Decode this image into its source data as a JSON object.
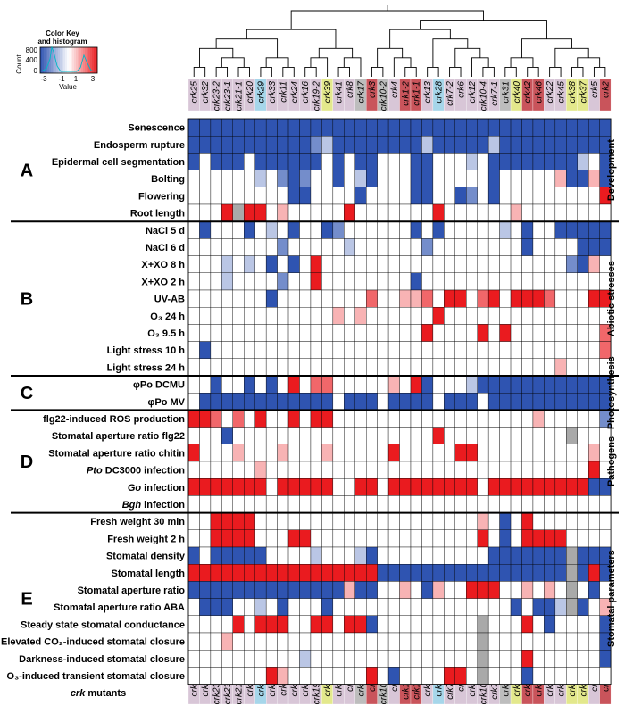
{
  "chart_data": {
    "type": "heatmap",
    "title": "",
    "key": {
      "title_line1": "Color Key",
      "title_line2": "and histogram",
      "ylabel": "Count",
      "yticks": [
        "0",
        "400",
        "800"
      ],
      "xticks": [
        "-3",
        "-1",
        "1",
        "3"
      ],
      "xlabel": "Value",
      "range": [
        -3,
        3
      ]
    },
    "columns": [
      "crk25",
      "crk32",
      "crk23-2",
      "crk23-1",
      "crk21-1",
      "crk20",
      "crk29",
      "crk33",
      "crk11",
      "crk24",
      "crk16",
      "crk19-2",
      "crk39",
      "crk41",
      "crk8",
      "crk17",
      "crk3",
      "crk10-2",
      "crk4",
      "crk1-2",
      "crk1-1",
      "crk13",
      "crk28",
      "crk7-2",
      "crk6",
      "crk12",
      "crk10-4",
      "crk7-1",
      "crk31",
      "crk40",
      "crk42",
      "crk46",
      "crk22",
      "crk45",
      "crk38",
      "crk37",
      "crk5",
      "crk2"
    ],
    "column_colors": [
      "#d8c6d7",
      "#d8c6d7",
      "#d8c6d7",
      "#d8c6d7",
      "#d8c6d7",
      "#d8c6d7",
      "#a6d6ea",
      "#d8c6d7",
      "#d8c6d7",
      "#d8c6d7",
      "#d8c6d7",
      "#d8c6d7",
      "#e3e88c",
      "#d8c6d7",
      "#d8c6d7",
      "#bdbdbd",
      "#c9545b",
      "#bdbdbd",
      "#d8c6d7",
      "#c9545b",
      "#c9545b",
      "#d8c6d7",
      "#a6d6ea",
      "#d8c6d7",
      "#d8c6d7",
      "#d8c6d7",
      "#d8c6d7",
      "#d8c6d7",
      "#bdbdbd",
      "#e3e88c",
      "#c9545b",
      "#c9545b",
      "#d8c6d7",
      "#d8c6d7",
      "#e3e88c",
      "#e3e88c",
      "#d8c6d7",
      "#c9545b"
    ],
    "bottom_axis_label": "crk mutants",
    "rows": [
      "Senescence",
      "Endosperm rupture",
      "Epidermal cell segmentation",
      "Bolting",
      "Flowering",
      "Root length",
      "NaCl 5 d",
      "NaCl 6 d",
      "X+XO 8 h",
      "X+XO 2 h",
      "UV-AB",
      "O₃ 24 h",
      "O₃ 9.5 h",
      "Light stress 10 h",
      "Light stress 24 h",
      "φPo DCMU",
      "φPo MV",
      "flg22-induced ROS production",
      "Stomatal aperture ratio flg22",
      "Stomatal aperture ratio chitin",
      "Pto DC3000 infection",
      "Go infection",
      "Bgh infection",
      "Fresh weight 30 min",
      "Fresh weight 2 h",
      "Stomatal density",
      "Stomatal length",
      "Stomatal aperture ratio",
      "Stomatal aperture ratio ABA",
      "Steady state stomatal conductance",
      "Elevated CO₂-induced stomatal closure",
      "Darkness-induced stomatal closure",
      "O₃-induced transient stomatal closure"
    ],
    "italic_rows": [
      20,
      21,
      22
    ],
    "groups": [
      {
        "letter": "A",
        "category": "Development",
        "start": 0,
        "end": 5
      },
      {
        "letter": "B",
        "category": "Abiotic stresses",
        "start": 6,
        "end": 14
      },
      {
        "letter": "C",
        "category": "Photosynthesis",
        "start": 15,
        "end": 16
      },
      {
        "letter": "D",
        "category": "Pathogens",
        "start": 17,
        "end": 22
      },
      {
        "letter": "E",
        "category": "Stomatal parameters",
        "start": 23,
        "end": 32
      }
    ],
    "values_note": "row-major; -3..3 scale, 0 = white, null = grey (missing)",
    "values": [
      [
        -3,
        -3,
        -3,
        -3,
        -3,
        -3,
        -3,
        -3,
        -3,
        -3,
        -3,
        -3,
        -3,
        -3,
        -3,
        -3,
        -3,
        -3,
        -3,
        -3,
        -3,
        -3,
        -3,
        -3,
        -3,
        -3,
        -3,
        -3,
        -3,
        -3,
        -3,
        -3,
        -3,
        -3,
        -3,
        -3,
        -3,
        -3
      ],
      [
        -3,
        -3,
        -3,
        -3,
        -3,
        -3,
        -3,
        -3,
        -3,
        -3,
        -3,
        -2,
        -1,
        -3,
        -3,
        -3,
        -3,
        -3,
        -3,
        -3,
        -3,
        -1,
        -3,
        -3,
        -3,
        -3,
        -3,
        -1,
        -3,
        -3,
        -3,
        -3,
        -3,
        -3,
        -3,
        -3,
        -3,
        -3
      ],
      [
        -3,
        0,
        -3,
        -3,
        -3,
        0,
        -3,
        -3,
        -3,
        -3,
        -3,
        -3,
        0,
        -3,
        0,
        -3,
        -3,
        0,
        0,
        0,
        -3,
        -3,
        0,
        0,
        0,
        -1,
        0,
        -3,
        -3,
        -3,
        -3,
        -3,
        -3,
        -3,
        -3,
        -1,
        0,
        -3
      ],
      [
        0,
        0,
        0,
        0,
        0,
        0,
        -1,
        0,
        -2,
        -3,
        -2,
        0,
        0,
        -3,
        0,
        -1,
        -3,
        0,
        0,
        0,
        -3,
        -3,
        0,
        0,
        0,
        0,
        0,
        -3,
        0,
        0,
        0,
        0,
        0,
        1,
        -3,
        -3,
        1,
        -3
      ],
      [
        0,
        0,
        0,
        0,
        0,
        0,
        0,
        0,
        0,
        -3,
        -3,
        0,
        0,
        0,
        0,
        -3,
        0,
        0,
        0,
        0,
        -3,
        -3,
        0,
        0,
        -3,
        -2,
        0,
        -3,
        0,
        0,
        0,
        0,
        0,
        0,
        0,
        0,
        0,
        3
      ],
      [
        0,
        0,
        0,
        3,
        null,
        3,
        3,
        0,
        1,
        0,
        0,
        0,
        0,
        0,
        3,
        0,
        0,
        0,
        0,
        0,
        0,
        0,
        3,
        0,
        0,
        0,
        0,
        0,
        0,
        1,
        0,
        0,
        0,
        0,
        0,
        0,
        0,
        0
      ],
      [
        0,
        -3,
        0,
        0,
        0,
        -3,
        0,
        -1,
        0,
        -3,
        0,
        0,
        -3,
        -2,
        0,
        0,
        0,
        0,
        0,
        0,
        -3,
        0,
        -3,
        0,
        0,
        0,
        0,
        0,
        -1,
        0,
        -3,
        0,
        0,
        -3,
        -3,
        -3,
        -3,
        -3
      ],
      [
        0,
        0,
        0,
        0,
        0,
        0,
        0,
        0,
        -2,
        0,
        0,
        0,
        0,
        0,
        -1,
        0,
        0,
        0,
        0,
        0,
        0,
        -2,
        0,
        0,
        0,
        0,
        0,
        0,
        0,
        0,
        -3,
        0,
        0,
        0,
        0,
        -3,
        -3,
        -3
      ],
      [
        0,
        0,
        0,
        -1,
        0,
        -1,
        0,
        -3,
        0,
        -3,
        0,
        3,
        0,
        0,
        0,
        0,
        0,
        0,
        0,
        0,
        0,
        0,
        0,
        0,
        0,
        0,
        0,
        0,
        0,
        0,
        0,
        0,
        0,
        0,
        -2,
        -3,
        1,
        0
      ],
      [
        0,
        0,
        0,
        -1,
        0,
        0,
        0,
        0,
        -2,
        0,
        0,
        3,
        0,
        0,
        0,
        0,
        0,
        0,
        0,
        0,
        -3,
        0,
        0,
        0,
        0,
        0,
        0,
        0,
        0,
        0,
        0,
        0,
        0,
        0,
        0,
        0,
        0,
        0
      ],
      [
        0,
        0,
        0,
        0,
        0,
        0,
        0,
        -3,
        0,
        0,
        0,
        0,
        0,
        0,
        0,
        0,
        2,
        0,
        0,
        1,
        1,
        2,
        0,
        3,
        3,
        0,
        2,
        3,
        0,
        3,
        3,
        3,
        2,
        0,
        0,
        0,
        3,
        3
      ],
      [
        0,
        0,
        0,
        0,
        0,
        0,
        0,
        0,
        0,
        0,
        0,
        0,
        0,
        1,
        0,
        1,
        0,
        0,
        0,
        0,
        0,
        0,
        3,
        0,
        0,
        0,
        0,
        0,
        0,
        0,
        0,
        0,
        0,
        0,
        0,
        0,
        0,
        0
      ],
      [
        0,
        0,
        0,
        0,
        0,
        0,
        0,
        0,
        0,
        0,
        0,
        0,
        0,
        0,
        0,
        0,
        0,
        0,
        0,
        0,
        0,
        3,
        0,
        0,
        0,
        0,
        3,
        0,
        3,
        0,
        0,
        0,
        0,
        0,
        0,
        0,
        0,
        2
      ],
      [
        0,
        -3,
        0,
        0,
        0,
        0,
        0,
        0,
        0,
        0,
        0,
        0,
        0,
        0,
        0,
        0,
        0,
        0,
        0,
        0,
        0,
        0,
        0,
        0,
        0,
        0,
        0,
        0,
        0,
        0,
        0,
        0,
        0,
        0,
        0,
        0,
        0,
        2
      ],
      [
        0,
        0,
        0,
        0,
        0,
        0,
        0,
        0,
        0,
        0,
        0,
        0,
        0,
        0,
        0,
        0,
        0,
        0,
        0,
        0,
        0,
        0,
        0,
        0,
        0,
        0,
        0,
        0,
        0,
        0,
        0,
        0,
        0,
        1,
        0,
        0,
        0,
        0
      ],
      [
        0,
        0,
        -3,
        0,
        0,
        -3,
        0,
        -3,
        0,
        3,
        0,
        2,
        2,
        0,
        0,
        0,
        0,
        0,
        1,
        0,
        3,
        -3,
        0,
        0,
        0,
        -1,
        -3,
        -3,
        -3,
        -3,
        -3,
        -3,
        -3,
        -3,
        -3,
        -3,
        -3,
        -3
      ],
      [
        0,
        -3,
        -3,
        -3,
        -3,
        -3,
        -3,
        -3,
        -3,
        -3,
        -3,
        -3,
        -3,
        0,
        -3,
        -3,
        -3,
        0,
        -3,
        -3,
        -3,
        -3,
        0,
        -3,
        -3,
        -3,
        0,
        -3,
        -3,
        -3,
        -3,
        -3,
        -3,
        -3,
        -3,
        -3,
        -3,
        -3
      ],
      [
        3,
        3,
        2,
        0,
        2,
        0,
        3,
        0,
        0,
        3,
        0,
        3,
        3,
        0,
        0,
        0,
        0,
        0,
        0,
        0,
        0,
        0,
        0,
        0,
        0,
        0,
        0,
        0,
        0,
        0,
        0,
        1,
        0,
        0,
        0,
        0,
        0,
        -2
      ],
      [
        0,
        0,
        0,
        -3,
        0,
        0,
        0,
        0,
        0,
        0,
        0,
        0,
        0,
        0,
        0,
        0,
        0,
        0,
        0,
        0,
        0,
        0,
        3,
        0,
        0,
        0,
        0,
        0,
        0,
        0,
        0,
        0,
        0,
        0,
        null,
        0,
        0,
        0
      ],
      [
        3,
        0,
        0,
        0,
        1,
        0,
        0,
        0,
        1,
        0,
        0,
        0,
        1,
        0,
        0,
        0,
        0,
        0,
        3,
        0,
        0,
        0,
        0,
        0,
        3,
        3,
        0,
        0,
        0,
        0,
        0,
        0,
        0,
        0,
        0,
        0,
        1,
        0
      ],
      [
        0,
        0,
        0,
        0,
        0,
        0,
        1,
        0,
        0,
        0,
        0,
        0,
        0,
        0,
        0,
        0,
        0,
        0,
        0,
        0,
        0,
        0,
        0,
        0,
        0,
        0,
        0,
        0,
        0,
        0,
        0,
        0,
        0,
        0,
        0,
        0,
        3,
        0
      ],
      [
        3,
        3,
        3,
        3,
        3,
        3,
        3,
        0,
        3,
        3,
        3,
        3,
        3,
        0,
        0,
        3,
        3,
        0,
        3,
        3,
        3,
        3,
        3,
        3,
        3,
        3,
        0,
        3,
        3,
        3,
        3,
        3,
        3,
        3,
        3,
        3,
        -3,
        -3
      ],
      [
        0,
        0,
        0,
        0,
        0,
        0,
        0,
        0,
        0,
        0,
        0,
        0,
        0,
        0,
        0,
        0,
        0,
        0,
        0,
        0,
        0,
        0,
        0,
        0,
        0,
        0,
        0,
        0,
        0,
        0,
        0,
        0,
        0,
        0,
        0,
        0,
        0,
        0
      ],
      [
        0,
        0,
        3,
        3,
        3,
        3,
        0,
        0,
        0,
        0,
        0,
        0,
        0,
        0,
        0,
        0,
        0,
        0,
        0,
        0,
        0,
        0,
        0,
        0,
        0,
        0,
        1,
        0,
        -3,
        0,
        3,
        0,
        0,
        0,
        0,
        0,
        0,
        0
      ],
      [
        0,
        0,
        3,
        3,
        3,
        3,
        0,
        0,
        0,
        3,
        3,
        0,
        0,
        0,
        0,
        0,
        0,
        0,
        0,
        0,
        0,
        0,
        0,
        0,
        0,
        0,
        3,
        0,
        -3,
        0,
        3,
        3,
        3,
        3,
        0,
        0,
        0,
        0
      ],
      [
        -3,
        0,
        -3,
        -3,
        -3,
        -3,
        -3,
        0,
        0,
        0,
        0,
        -1,
        0,
        0,
        0,
        -1,
        -3,
        0,
        0,
        0,
        0,
        0,
        0,
        0,
        0,
        0,
        0,
        -3,
        -3,
        -3,
        -3,
        -3,
        -3,
        -3,
        null,
        -3,
        -3,
        -3
      ],
      [
        3,
        3,
        3,
        3,
        3,
        3,
        3,
        3,
        3,
        3,
        3,
        3,
        3,
        3,
        3,
        3,
        3,
        -3,
        -3,
        -3,
        -3,
        -3,
        -3,
        -3,
        -3,
        -3,
        -3,
        -3,
        -3,
        -3,
        -3,
        -3,
        -3,
        -3,
        null,
        -3,
        3,
        -3
      ],
      [
        -3,
        -3,
        -3,
        -3,
        -3,
        -3,
        -3,
        -3,
        -3,
        -3,
        -3,
        -3,
        -3,
        -3,
        1,
        -3,
        -3,
        0,
        0,
        1,
        0,
        -3,
        1,
        0,
        0,
        3,
        3,
        3,
        0,
        0,
        1,
        0,
        1,
        0,
        null,
        0,
        -3,
        0
      ],
      [
        0,
        -3,
        -3,
        -3,
        0,
        0,
        -1,
        0,
        -3,
        0,
        0,
        0,
        -3,
        0,
        0,
        0,
        0,
        0,
        0,
        0,
        0,
        0,
        0,
        0,
        0,
        0,
        0,
        0,
        0,
        -3,
        0,
        -3,
        -3,
        -1,
        null,
        -3,
        0,
        1
      ],
      [
        0,
        0,
        0,
        0,
        3,
        0,
        3,
        3,
        3,
        0,
        0,
        3,
        3,
        0,
        3,
        3,
        -3,
        0,
        0,
        0,
        0,
        0,
        0,
        0,
        0,
        0,
        null,
        0,
        0,
        0,
        3,
        0,
        -3,
        0,
        0,
        0,
        0,
        -3
      ],
      [
        0,
        0,
        0,
        1,
        0,
        0,
        0,
        0,
        0,
        0,
        0,
        0,
        0,
        0,
        0,
        0,
        0,
        0,
        0,
        0,
        0,
        0,
        0,
        0,
        0,
        0,
        null,
        0,
        0,
        0,
        0,
        0,
        0,
        0,
        0,
        0,
        0,
        -3
      ],
      [
        0,
        0,
        0,
        0,
        0,
        0,
        0,
        0,
        0,
        0,
        -1,
        0,
        0,
        0,
        0,
        0,
        0,
        0,
        0,
        0,
        0,
        0,
        0,
        0,
        0,
        0,
        null,
        0,
        0,
        0,
        3,
        0,
        0,
        0,
        0,
        0,
        0,
        -3
      ],
      [
        0,
        0,
        0,
        0,
        0,
        0,
        0,
        3,
        1,
        0,
        0,
        0,
        0,
        0,
        0,
        0,
        3,
        0,
        -3,
        0,
        0,
        0,
        0,
        3,
        3,
        0,
        null,
        0,
        0,
        0,
        -3,
        0,
        0,
        0,
        0,
        0,
        0,
        0
      ]
    ]
  }
}
